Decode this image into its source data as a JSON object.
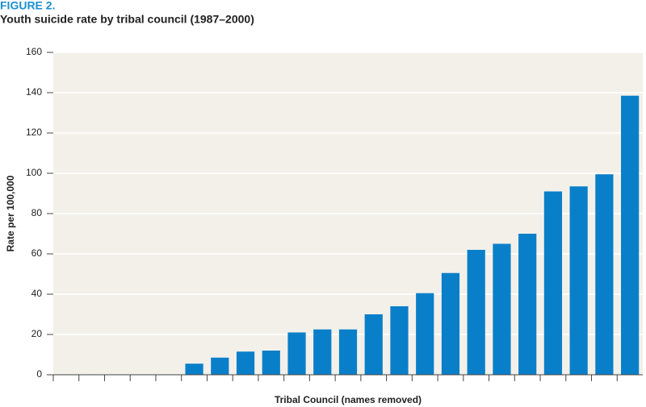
{
  "chart_data": {
    "type": "bar",
    "title": "FIGURE 2.",
    "subtitle": "Youth suicide rate by tribal council (1987–2000)",
    "x_label": "Tribal Council (names removed)",
    "y_label": "Rate per 100,000",
    "categories": [
      null,
      null,
      null,
      null,
      null,
      null,
      null,
      null,
      null,
      null,
      null,
      null,
      null,
      null,
      null,
      null,
      null,
      null,
      null,
      null,
      null,
      null,
      null
    ],
    "values": [
      0,
      0,
      0,
      0,
      0,
      5.5,
      8.5,
      11.5,
      12,
      21,
      22.5,
      22.5,
      30,
      34,
      40.5,
      50.5,
      62,
      65,
      70,
      91,
      93.5,
      99.5,
      138.5
    ],
    "color": "#0a7fc9",
    "ylim": [
      0,
      160
    ],
    "yticks": [
      0,
      20,
      40,
      60,
      80,
      100,
      120,
      140,
      160
    ],
    "grid": true
  }
}
